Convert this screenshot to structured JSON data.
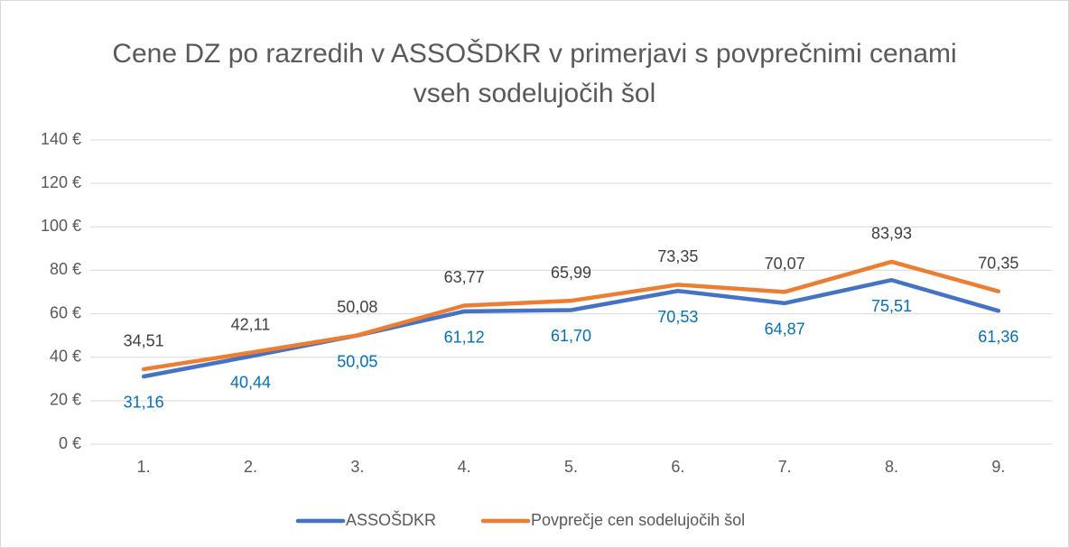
{
  "chart_data": {
    "type": "line",
    "title": "Cene DZ po razredih v ASSOŠDKR v primerjavi s povprečnimi cenami vseh sodelujočih šol",
    "categories": [
      "1.",
      "2.",
      "3.",
      "4.",
      "5.",
      "6.",
      "7.",
      "8.",
      "9."
    ],
    "series": [
      {
        "name": "ASSOŠDKR",
        "color": "#4472c4",
        "label_color": "#0070c0",
        "values": [
          31.16,
          40.44,
          50.05,
          61.12,
          61.7,
          70.53,
          64.87,
          75.51,
          61.36
        ],
        "value_labels": [
          "31,16",
          "40,44",
          "50,05",
          "61,12",
          "61,70",
          "70,53",
          "64,87",
          "75,51",
          "61,36"
        ]
      },
      {
        "name": "Povprečje cen sodelujočih šol",
        "color": "#ed7d31",
        "label_color": "#404040",
        "values": [
          34.51,
          42.11,
          50.08,
          63.77,
          65.99,
          73.35,
          70.07,
          83.93,
          70.35
        ],
        "value_labels": [
          "34,51",
          "42,11",
          "50,08",
          "63,77",
          "65,99",
          "73,35",
          "70,07",
          "83,93",
          "70,35"
        ]
      }
    ],
    "ylim": [
      0,
      140
    ],
    "yticks": [
      {
        "value": 0,
        "label": "0 €"
      },
      {
        "value": 20,
        "label": "20 €"
      },
      {
        "value": 40,
        "label": "40 €"
      },
      {
        "value": 60,
        "label": "60 €"
      },
      {
        "value": 80,
        "label": "80 €"
      },
      {
        "value": 100,
        "label": "100 €"
      },
      {
        "value": 120,
        "label": "120 €"
      },
      {
        "value": 140,
        "label": "140 €"
      }
    ],
    "grid": true,
    "legend": "bottom"
  }
}
